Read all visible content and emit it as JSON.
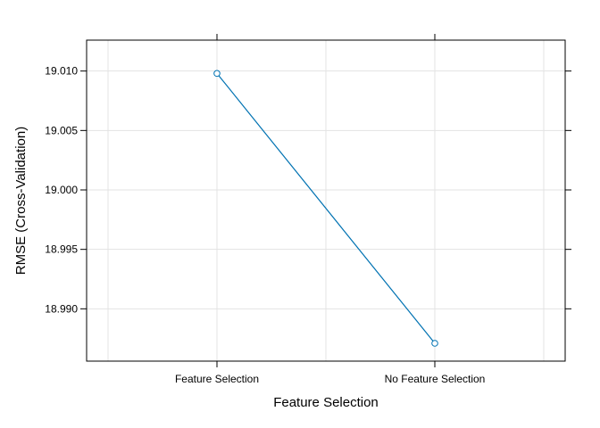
{
  "chart_data": {
    "type": "line",
    "title": "",
    "xlabel": "Feature Selection",
    "ylabel": "RMSE (Cross-Validation)",
    "categories": [
      "Feature Selection",
      "No Feature Selection"
    ],
    "series": [
      {
        "values": [
          19.0098,
          18.9871
        ],
        "color": "#0072B2",
        "marker": "open-circle"
      }
    ],
    "y_ticks": [
      18.99,
      18.995,
      19.0,
      19.005,
      19.01
    ],
    "y_tick_labels": [
      "18.990",
      "18.995",
      "19.000",
      "19.005",
      "19.010"
    ],
    "ylim": [
      18.9856,
      19.0126
    ],
    "grid": true,
    "legend": "none"
  }
}
